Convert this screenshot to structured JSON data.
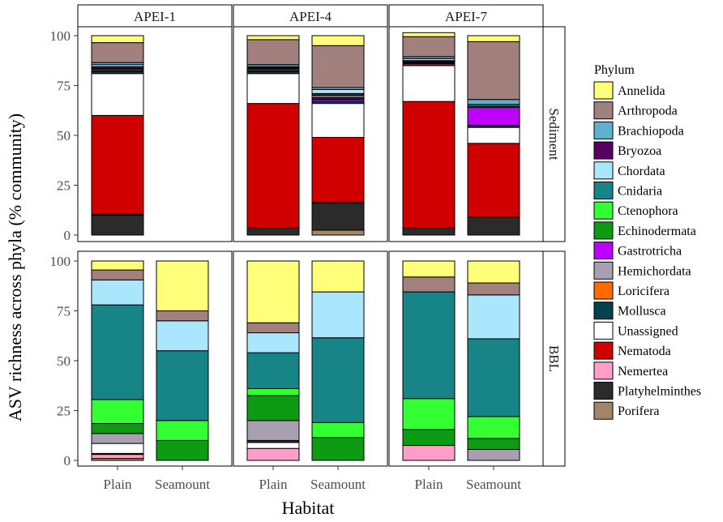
{
  "chart_data": {
    "type": "bar",
    "stacked": true,
    "ylabel": "ASV richness across phyla (% community)",
    "xlabel": "Habitat",
    "yticks": [
      0,
      25,
      50,
      75,
      100
    ],
    "ylim": [
      0,
      100
    ],
    "columns": [
      "APEI-1",
      "APEI-4",
      "APEI-7"
    ],
    "rows": [
      "Sediment",
      "BBL"
    ],
    "categories": [
      "Plain",
      "Seamount"
    ],
    "legend": {
      "title": "Phylum",
      "position": "right",
      "items": [
        {
          "name": "Annelida",
          "color": "#ffff7a"
        },
        {
          "name": "Arthropoda",
          "color": "#a1807d"
        },
        {
          "name": "Brachiopoda",
          "color": "#5fb1cd"
        },
        {
          "name": "Bryozoa",
          "color": "#5a0064"
        },
        {
          "name": "Chordata",
          "color": "#aae7ff"
        },
        {
          "name": "Cnidaria",
          "color": "#178587"
        },
        {
          "name": "Ctenophora",
          "color": "#33ff33"
        },
        {
          "name": "Echinodermata",
          "color": "#0d9b14"
        },
        {
          "name": "Gastrotricha",
          "color": "#c000ff"
        },
        {
          "name": "Hemichordata",
          "color": "#a8a0b2"
        },
        {
          "name": "Loricifera",
          "color": "#ff6a00"
        },
        {
          "name": "Mollusca",
          "color": "#04424d"
        },
        {
          "name": "Unassigned",
          "color": "#ffffff"
        },
        {
          "name": "Nematoda",
          "color": "#d00000"
        },
        {
          "name": "Nemertea",
          "color": "#ff9ec9"
        },
        {
          "name": "Platyhelminthes",
          "color": "#2b2b2b"
        },
        {
          "name": "Porifera",
          "color": "#a28566"
        }
      ]
    },
    "panels": [
      {
        "column": "APEI-1",
        "row": "Sediment",
        "bars": [
          {
            "category": "Plain",
            "segments": [
              {
                "phylum": "Platyhelminthes",
                "value": 10
              },
              {
                "phylum": "Nemertea",
                "value": 0.5
              },
              {
                "phylum": "Nematoda",
                "value": 49.5
              },
              {
                "phylum": "Unassigned",
                "value": 21
              },
              {
                "phylum": "Mollusca",
                "value": 1
              },
              {
                "phylum": "Platyhelminthes",
                "value": 1.5
              },
              {
                "phylum": "Bryozoa",
                "value": 1
              },
              {
                "phylum": "Chordata",
                "value": 1
              },
              {
                "phylum": "Brachiopoda",
                "value": 1
              },
              {
                "phylum": "Arthropoda",
                "value": 10
              },
              {
                "phylum": "Annelida",
                "value": 3.5
              }
            ]
          }
        ]
      },
      {
        "column": "APEI-4",
        "row": "Sediment",
        "bars": [
          {
            "category": "Plain",
            "segments": [
              {
                "phylum": "Platyhelminthes",
                "value": 3.5
              },
              {
                "phylum": "Nematoda",
                "value": 62.5
              },
              {
                "phylum": "Unassigned",
                "value": 15
              },
              {
                "phylum": "Mollusca",
                "value": 1
              },
              {
                "phylum": "Platyhelminthes",
                "value": 1.5
              },
              {
                "phylum": "Nematoda",
                "value": 0.5
              },
              {
                "phylum": "Chordata",
                "value": 0.5
              },
              {
                "phylum": "Brachiopoda",
                "value": 1
              },
              {
                "phylum": "Arthropoda",
                "value": 12.5
              },
              {
                "phylum": "Annelida",
                "value": 2
              }
            ]
          },
          {
            "category": "Seamount",
            "segments": [
              {
                "phylum": "Porifera",
                "value": 2.5
              },
              {
                "phylum": "Platyhelminthes",
                "value": 13.5
              },
              {
                "phylum": "Nemertea",
                "value": 0.5
              },
              {
                "phylum": "Nematoda",
                "value": 32.5
              },
              {
                "phylum": "Unassigned",
                "value": 17
              },
              {
                "phylum": "Mollusca",
                "value": 1
              },
              {
                "phylum": "Gastrotricha",
                "value": 1
              },
              {
                "phylum": "Bryozoa",
                "value": 1
              },
              {
                "phylum": "Hemichordata",
                "value": 1
              },
              {
                "phylum": "Platyhelminthes",
                "value": 1
              },
              {
                "phylum": "Chordata",
                "value": 2
              },
              {
                "phylum": "Brachiopoda",
                "value": 1
              },
              {
                "phylum": "Arthropoda",
                "value": 21
              },
              {
                "phylum": "Annelida",
                "value": 5
              }
            ]
          }
        ]
      },
      {
        "column": "APEI-7",
        "row": "Sediment",
        "bars": [
          {
            "category": "Plain",
            "segments": [
              {
                "phylum": "Platyhelminthes",
                "value": 3.5
              },
              {
                "phylum": "Nematoda",
                "value": 63.5
              },
              {
                "phylum": "Unassigned",
                "value": 18
              },
              {
                "phylum": "Nematoda",
                "value": 1
              },
              {
                "phylum": "Platyhelminthes",
                "value": 0.5
              },
              {
                "phylum": "Bryozoa",
                "value": 0.5
              },
              {
                "phylum": "Gastrotricha",
                "value": 0.5
              },
              {
                "phylum": "Chordata",
                "value": 1
              },
              {
                "phylum": "Brachiopoda",
                "value": 1
              },
              {
                "phylum": "Arthropoda",
                "value": 10
              },
              {
                "phylum": "Annelida",
                "value": 2
              }
            ]
          },
          {
            "category": "Seamount",
            "segments": [
              {
                "phylum": "Platyhelminthes",
                "value": 9
              },
              {
                "phylum": "Nematoda",
                "value": 37
              },
              {
                "phylum": "Unassigned",
                "value": 8
              },
              {
                "phylum": "Mollusca",
                "value": 1
              },
              {
                "phylum": "Gastrotricha",
                "value": 9
              },
              {
                "phylum": "Chordata",
                "value": 0.5
              },
              {
                "phylum": "Cnidaria",
                "value": 1
              },
              {
                "phylum": "Brachiopoda",
                "value": 2.5
              },
              {
                "phylum": "Arthropoda",
                "value": 29
              },
              {
                "phylum": "Annelida",
                "value": 3
              }
            ]
          }
        ]
      },
      {
        "column": "APEI-1",
        "row": "BBL",
        "bars": [
          {
            "category": "Plain",
            "segments": [
              {
                "phylum": "Porifera",
                "value": 1
              },
              {
                "phylum": "Nemertea",
                "value": 2
              },
              {
                "phylum": "Nematoda",
                "value": 0.5
              },
              {
                "phylum": "Unassigned",
                "value": 5
              },
              {
                "phylum": "Hemichordata",
                "value": 5
              },
              {
                "phylum": "Echinodermata",
                "value": 5
              },
              {
                "phylum": "Ctenophora",
                "value": 12
              },
              {
                "phylum": "Cnidaria",
                "value": 47.5
              },
              {
                "phylum": "Chordata",
                "value": 12.5
              },
              {
                "phylum": "Arthropoda",
                "value": 5
              },
              {
                "phylum": "Annelida",
                "value": 4.5
              }
            ]
          },
          {
            "category": "Seamount",
            "segments": [
              {
                "phylum": "Echinodermata",
                "value": 10
              },
              {
                "phylum": "Ctenophora",
                "value": 10
              },
              {
                "phylum": "Cnidaria",
                "value": 35
              },
              {
                "phylum": "Chordata",
                "value": 15
              },
              {
                "phylum": "Arthropoda",
                "value": 5
              },
              {
                "phylum": "Annelida",
                "value": 25
              }
            ]
          }
        ]
      },
      {
        "column": "APEI-4",
        "row": "BBL",
        "bars": [
          {
            "category": "Plain",
            "segments": [
              {
                "phylum": "Nemertea",
                "value": 6
              },
              {
                "phylum": "Unassigned",
                "value": 3
              },
              {
                "phylum": "Platyhelminthes",
                "value": 1
              },
              {
                "phylum": "Hemichordata",
                "value": 10
              },
              {
                "phylum": "Echinodermata",
                "value": 12.5
              },
              {
                "phylum": "Ctenophora",
                "value": 3.5
              },
              {
                "phylum": "Cnidaria",
                "value": 18
              },
              {
                "phylum": "Chordata",
                "value": 10
              },
              {
                "phylum": "Arthropoda",
                "value": 5
              },
              {
                "phylum": "Annelida",
                "value": 31
              }
            ]
          },
          {
            "category": "Seamount",
            "segments": [
              {
                "phylum": "Echinodermata",
                "value": 11.5
              },
              {
                "phylum": "Ctenophora",
                "value": 7.5
              },
              {
                "phylum": "Cnidaria",
                "value": 42.5
              },
              {
                "phylum": "Chordata",
                "value": 23
              },
              {
                "phylum": "Annelida",
                "value": 15.5
              }
            ]
          }
        ]
      },
      {
        "column": "APEI-7",
        "row": "BBL",
        "bars": [
          {
            "category": "Plain",
            "segments": [
              {
                "phylum": "Nemertea",
                "value": 7.5
              },
              {
                "phylum": "Echinodermata",
                "value": 8
              },
              {
                "phylum": "Ctenophora",
                "value": 15.5
              },
              {
                "phylum": "Cnidaria",
                "value": 53.5
              },
              {
                "phylum": "Arthropoda",
                "value": 7.5
              },
              {
                "phylum": "Annelida",
                "value": 8
              }
            ]
          },
          {
            "category": "Seamount",
            "segments": [
              {
                "phylum": "Hemichordata",
                "value": 5.5
              },
              {
                "phylum": "Echinodermata",
                "value": 5.5
              },
              {
                "phylum": "Ctenophora",
                "value": 11
              },
              {
                "phylum": "Cnidaria",
                "value": 39
              },
              {
                "phylum": "Chordata",
                "value": 22
              },
              {
                "phylum": "Arthropoda",
                "value": 6
              },
              {
                "phylum": "Annelida",
                "value": 11
              }
            ]
          }
        ]
      }
    ]
  }
}
